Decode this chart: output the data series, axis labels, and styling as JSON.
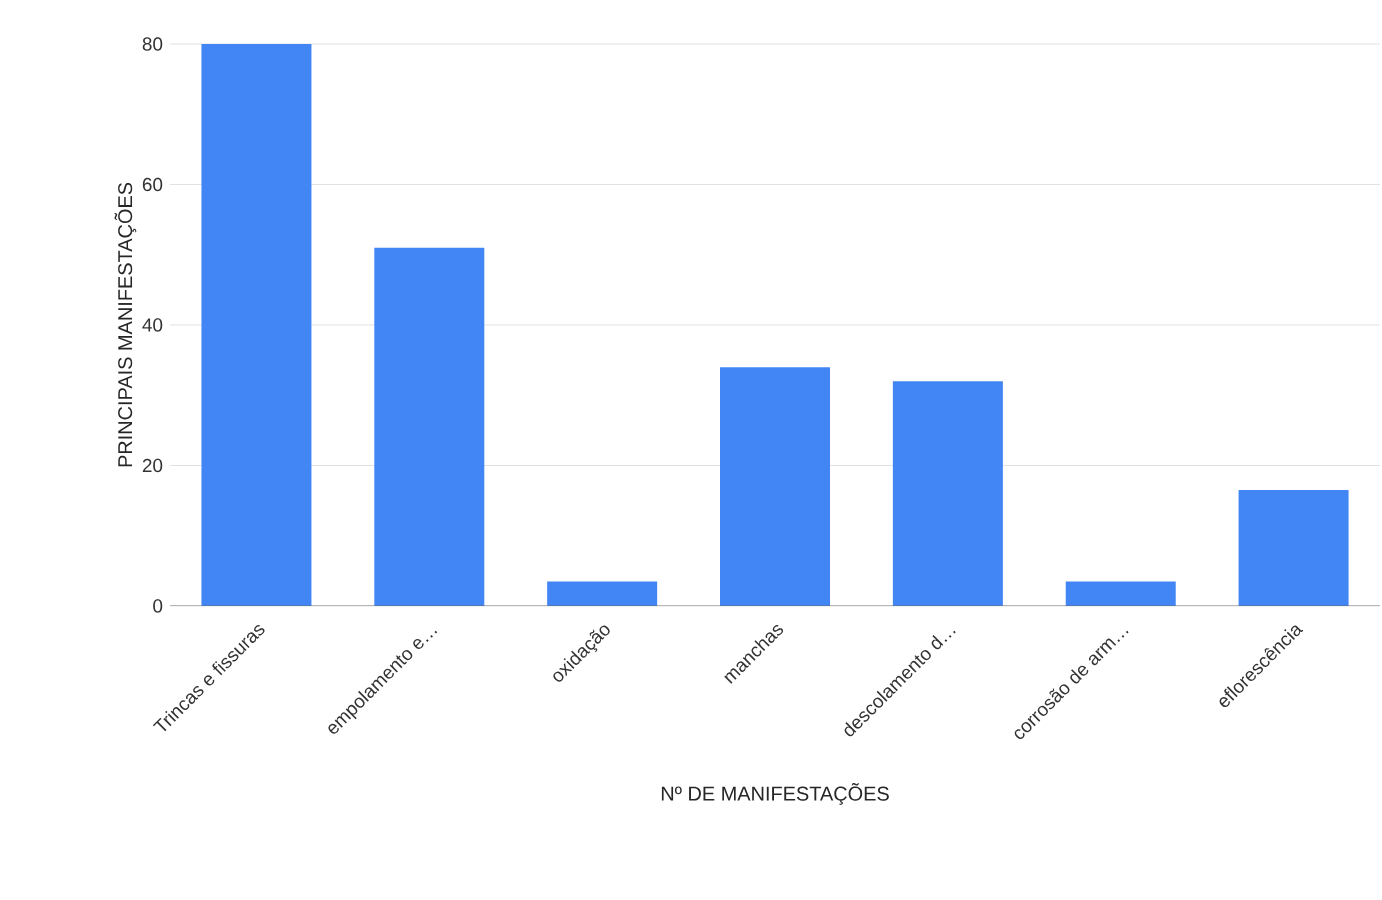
{
  "chart_data": {
    "type": "bar",
    "xlabel": "Nº DE MANIFESTAÇÕES",
    "ylabel": "PRINCIPAIS MANIFESTAÇÕES",
    "categories": [
      "Trincas e fissuras",
      "empolamento e…",
      "oxidação",
      "manchas",
      "descolamento d…",
      "corrosão de arm…",
      "eflorescência"
    ],
    "values": [
      80,
      51,
      3.5,
      34,
      32,
      3.5,
      16.5
    ],
    "color": "#4285f4",
    "ylim": [
      0,
      80
    ],
    "yticks": [
      0,
      20,
      40,
      60,
      80
    ],
    "grid": "y"
  }
}
